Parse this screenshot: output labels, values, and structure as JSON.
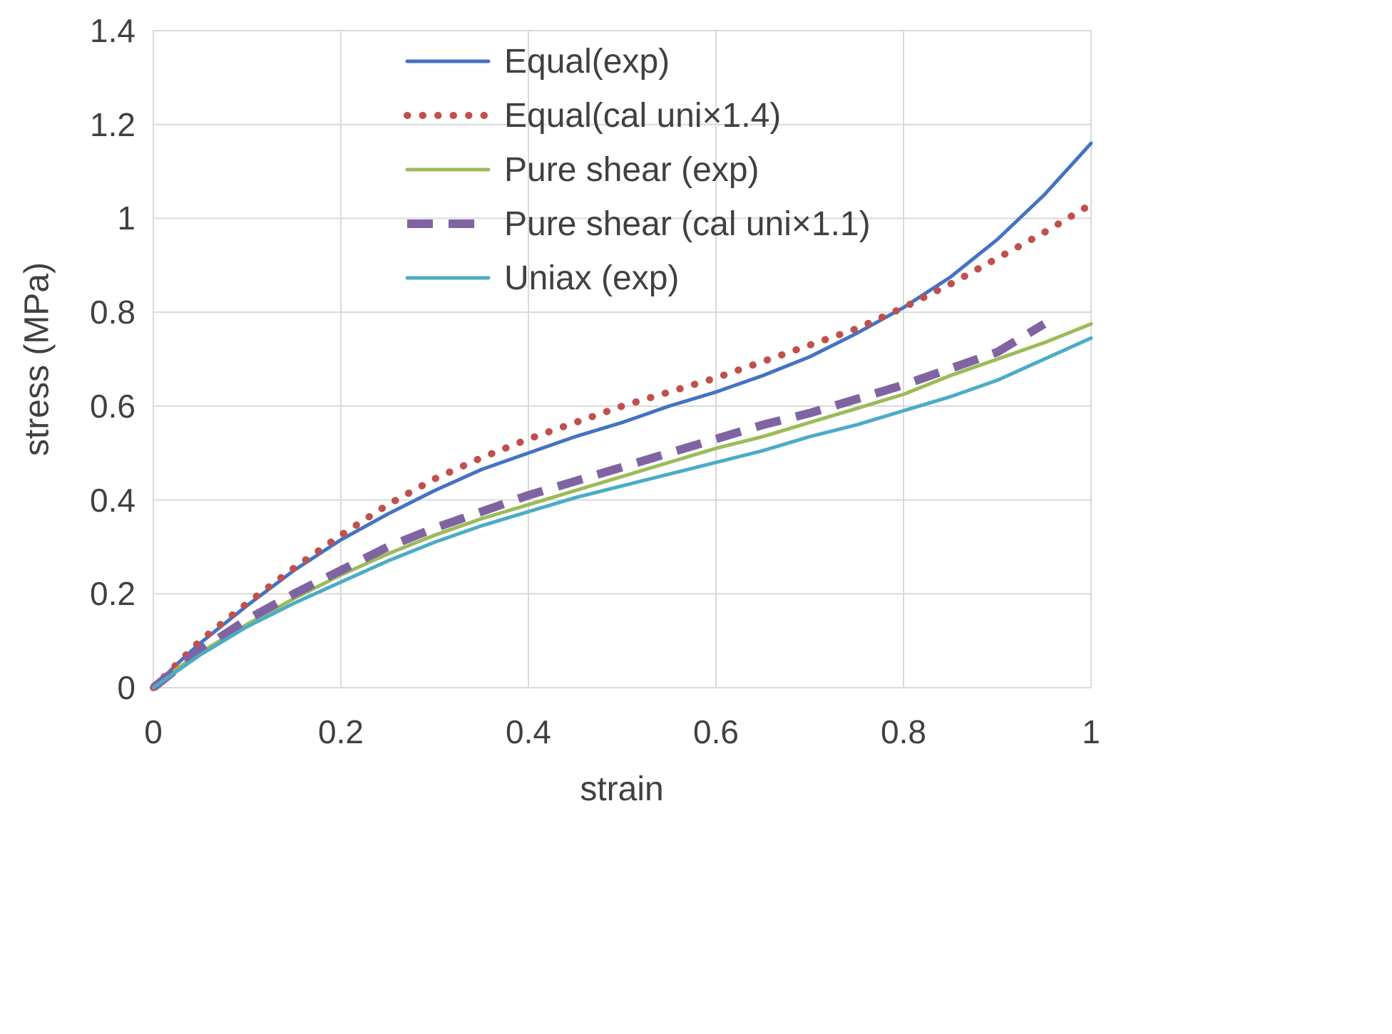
{
  "chart_data": {
    "type": "line",
    "title": "",
    "xlabel": "strain",
    "ylabel": "stress (MPa)",
    "xlim": [
      0,
      1
    ],
    "ylim": [
      0,
      1.4
    ],
    "x_ticks": [
      0,
      0.2,
      0.4,
      0.6,
      0.8,
      1
    ],
    "x_tick_labels": [
      "0",
      "0.2",
      "0.4",
      "0.6",
      "0.8",
      "1"
    ],
    "y_ticks": [
      0,
      0.2,
      0.4,
      0.6,
      0.8,
      1,
      1.2,
      1.4
    ],
    "y_tick_labels": [
      "0",
      "0.2",
      "0.4",
      "0.6",
      "0.8",
      "1",
      "1.2",
      "1.4"
    ],
    "grid": true,
    "grid_color": "#D9D9D9",
    "legend_position": "top-center-inside",
    "x": [
      0,
      0.025,
      0.05,
      0.1,
      0.15,
      0.2,
      0.25,
      0.3,
      0.35,
      0.4,
      0.45,
      0.5,
      0.55,
      0.6,
      0.65,
      0.7,
      0.75,
      0.8,
      0.85,
      0.9,
      0.95,
      1
    ],
    "series": [
      {
        "id": "equal-exp",
        "name": "Equal(exp)",
        "color": "#4472C4",
        "style": "solid",
        "width": 5,
        "dash": "",
        "linecap": "round",
        "values": [
          0,
          0.05,
          0.095,
          0.175,
          0.25,
          0.315,
          0.37,
          0.42,
          0.465,
          0.5,
          0.535,
          0.565,
          0.6,
          0.63,
          0.665,
          0.705,
          0.755,
          0.81,
          0.875,
          0.955,
          1.05,
          1.16
        ]
      },
      {
        "id": "equal-cal-uni-1-4",
        "name": "Equal(cal uni×1.4)",
        "color": "#C0504D",
        "style": "dotted",
        "width": 10,
        "dash": "0.5 21",
        "linecap": "round",
        "values": [
          0,
          0.05,
          0.1,
          0.18,
          0.255,
          0.325,
          0.39,
          0.445,
          0.49,
          0.53,
          0.565,
          0.6,
          0.63,
          0.66,
          0.695,
          0.73,
          0.765,
          0.81,
          0.86,
          0.915,
          0.97,
          1.03
        ]
      },
      {
        "id": "pure-shear-exp",
        "name": "Pure shear (exp)",
        "color": "#9BBB59",
        "style": "solid",
        "width": 5,
        "dash": "",
        "linecap": "round",
        "values": [
          0,
          0.04,
          0.075,
          0.135,
          0.19,
          0.24,
          0.285,
          0.325,
          0.36,
          0.39,
          0.42,
          0.45,
          0.48,
          0.51,
          0.535,
          0.565,
          0.595,
          0.625,
          0.665,
          0.7,
          0.735,
          0.775
        ]
      },
      {
        "id": "pure-shear-cal-uni-1-1",
        "name": "Pure shear (cal uni×1.1)",
        "color": "#8064A2",
        "style": "dashed",
        "width": 12,
        "dash": "36 22",
        "linecap": "butt",
        "values": [
          0,
          0.04,
          0.08,
          0.145,
          0.2,
          0.25,
          0.3,
          0.34,
          0.375,
          0.41,
          0.44,
          0.47,
          0.5,
          0.53,
          0.56,
          0.585,
          0.615,
          0.645,
          0.68,
          0.715,
          0.775,
          null
        ]
      },
      {
        "id": "uniax-exp",
        "name": "Uniax (exp)",
        "color": "#4BACC6",
        "style": "solid",
        "width": 5,
        "dash": "",
        "linecap": "round",
        "values": [
          0,
          0.035,
          0.07,
          0.13,
          0.18,
          0.225,
          0.27,
          0.31,
          0.345,
          0.375,
          0.405,
          0.43,
          0.455,
          0.48,
          0.505,
          0.535,
          0.56,
          0.59,
          0.62,
          0.655,
          0.7,
          0.745
        ]
      }
    ]
  }
}
